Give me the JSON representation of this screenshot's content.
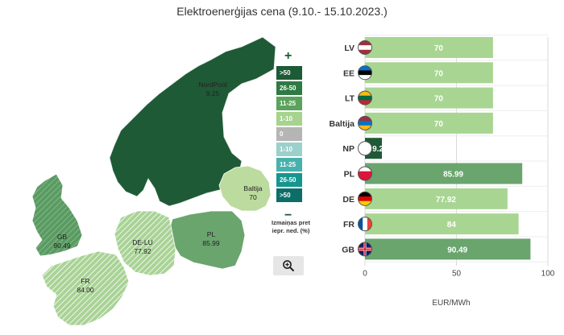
{
  "title": "Elektroenerģijas cena (9.10.- 15.10.2023.)",
  "map": {
    "regions": [
      {
        "name": "NordPool",
        "value": "9.25",
        "color": "#1f5a36",
        "hatched": false
      },
      {
        "name": "Baltija",
        "value": "70",
        "color": "#bcdb9e",
        "hatched": false
      },
      {
        "name": "GB",
        "value": "90.49",
        "color": "#5a9a63",
        "hatched": true
      },
      {
        "name": "DE-LU",
        "value": "77.92",
        "color": "#9dc68d",
        "hatched": true
      },
      {
        "name": "PL",
        "value": "85.99",
        "color": "#6aa56e",
        "hatched": false
      },
      {
        "name": "FR",
        "value": "84.00",
        "color": "#9cc88a",
        "hatched": true
      }
    ]
  },
  "legend": {
    "plus": "+",
    "minus": "−",
    "items": [
      {
        "label": ">50",
        "color": "#1d5a36"
      },
      {
        "label": "26-50",
        "color": "#2f7a43"
      },
      {
        "label": "11-25",
        "color": "#5aa35c"
      },
      {
        "label": "1-10",
        "color": "#a6d38d"
      },
      {
        "label": "0",
        "color": "#b5b5b5"
      },
      {
        "label": "1-10",
        "color": "#9bd0cb"
      },
      {
        "label": "11-25",
        "color": "#47b1ad"
      },
      {
        "label": "26-50",
        "color": "#17958f"
      },
      {
        "label": ">50",
        "color": "#0d6e68"
      }
    ],
    "note_line1": "Izmaiņas pret",
    "note_line2": "iepr. ned. (%)"
  },
  "zoom_icon": "zoom-in-icon",
  "chart_data": {
    "type": "bar",
    "orientation": "horizontal",
    "categories": [
      "LV",
      "EE",
      "LT",
      "Baltija",
      "NP",
      "PL",
      "DE",
      "FR",
      "GB"
    ],
    "values": [
      70,
      70,
      70,
      70,
      9.25,
      85.99,
      77.92,
      84,
      90.49
    ],
    "value_labels": [
      "70",
      "70",
      "70",
      "70",
      "9.2",
      "85.99",
      "77.92",
      "84",
      "90.49"
    ],
    "bar_colors": [
      "#a8d692",
      "#a8d692",
      "#a8d692",
      "#a8d692",
      "#1f5a36",
      "#6aa56e",
      "#a8d692",
      "#a8d692",
      "#6aa56e"
    ],
    "flags": [
      "latvia-flag-icon",
      "estonia-flag-icon",
      "lithuania-flag-icon",
      "baltic-flag-icon",
      "nordpool-logo-icon",
      "poland-flag-icon",
      "germany-flag-icon",
      "france-flag-icon",
      "uk-flag-icon"
    ],
    "xticks": [
      0,
      50,
      100
    ],
    "xlim": [
      0,
      100
    ],
    "xlabel": "EUR/MWh",
    "grid": true
  }
}
